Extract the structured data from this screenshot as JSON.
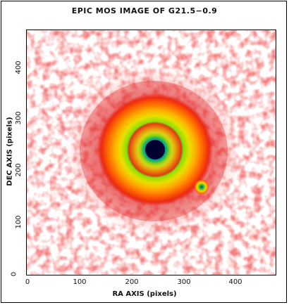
{
  "title": "EPIC MOS IMAGE OF G21.5−0.9",
  "x_axis": {
    "label": "RA AXIS (pixels)",
    "ticks": [
      "0",
      "100",
      "200",
      "300",
      "400"
    ],
    "range": [
      0,
      475
    ]
  },
  "y_axis": {
    "label": "DEC AXIS (pixels)",
    "ticks": [
      "0",
      "100",
      "200",
      "300",
      "400"
    ],
    "range": [
      0,
      475
    ]
  },
  "colormap": [
    "#ffffff",
    "#f4b0b0",
    "#e02020",
    "#ff6a00",
    "#ffb000",
    "#e8e000",
    "#a0e000",
    "#20c060",
    "#00a0c0",
    "#0000a0",
    "#000040"
  ],
  "sources": [
    {
      "name": "main-source",
      "x": 245,
      "y": 245,
      "peak": "bright"
    },
    {
      "name": "point-source",
      "x": 335,
      "y": 172,
      "peak": "faint"
    }
  ]
}
